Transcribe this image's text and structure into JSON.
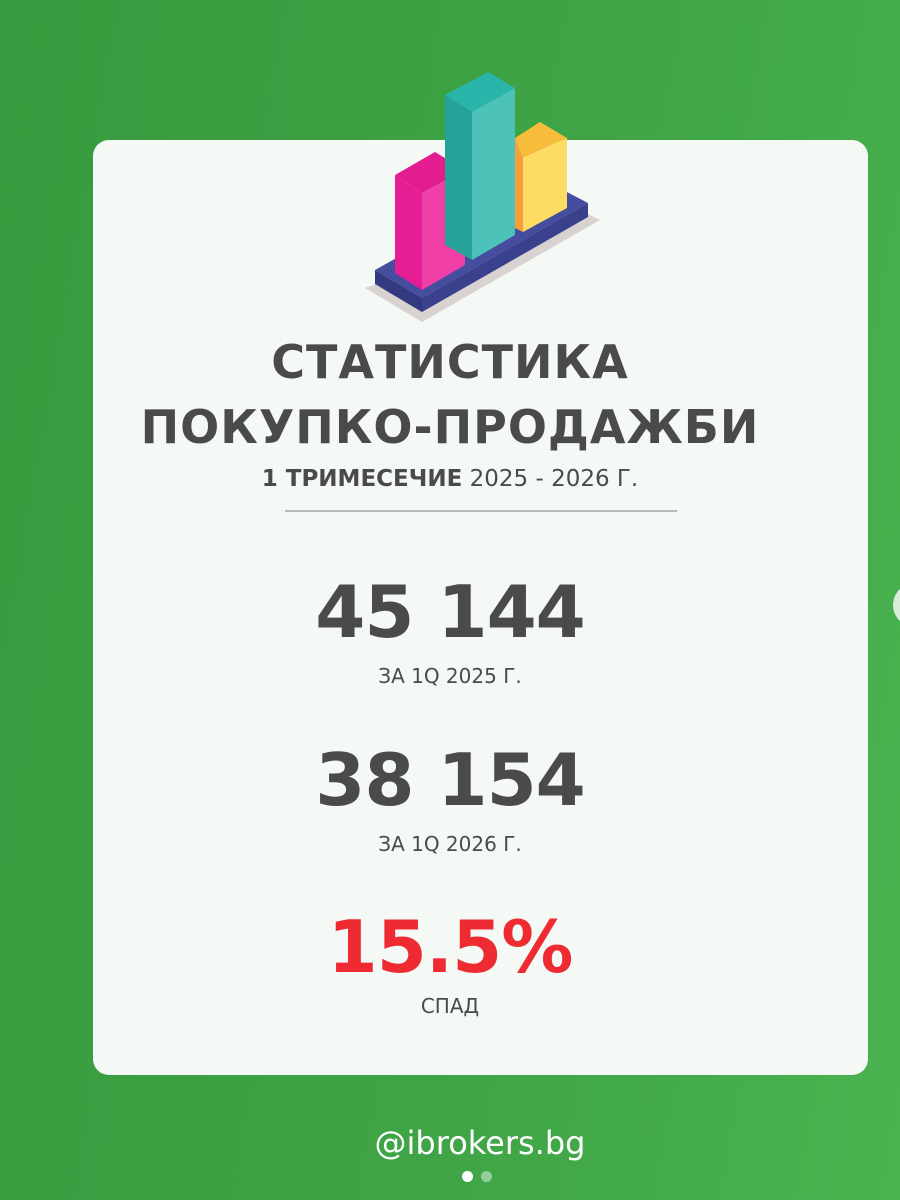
{
  "title_line1": "СТАТИСТИКА",
  "title_line2": "ПОКУПКО-ПРОДАЖБИ",
  "subtitle_bold": "1 ТРИМЕСЕЧИЕ",
  "subtitle_rest": " 2025 - 2026 Г.",
  "stats": [
    {
      "value": "45 144",
      "label": "ЗА 1Q 2025 Г."
    },
    {
      "value": "38 154",
      "label": "ЗА 1Q 2026 Г."
    },
    {
      "value": "15.5%",
      "label": "СПАД"
    }
  ],
  "handle": "@ibrokers.bg",
  "colors": {
    "accent_red": "#ee2b33",
    "background_green": "#3fa546",
    "text": "#4a4a4a"
  },
  "carousel": {
    "current": 1,
    "total": 2
  },
  "icons": {
    "illustration": "3d-bar-chart-icon",
    "next": "next-slide-button"
  }
}
